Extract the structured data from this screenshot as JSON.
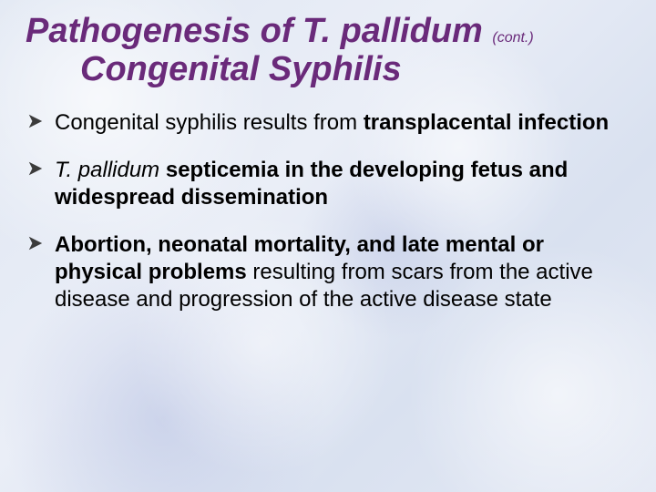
{
  "colors": {
    "title": "#6a2a7a",
    "bullet_arrow": "#3b3b3b",
    "body_text": "#000000",
    "bg_base": "#e4e9f4"
  },
  "title": {
    "organism": "Pathogenesis of T. pallidum",
    "cont": "(cont.)",
    "subtitle": "Congenital Syphilis"
  },
  "bullets": [
    {
      "pre": "Congenital syphilis results from ",
      "bold": "transplacental infection",
      "post": ""
    },
    {
      "pre_italic": "T. pallidum",
      "pre": " ",
      "bold": "septicemia in the developing fetus and widespread dissemination",
      "post": ""
    },
    {
      "pre": "",
      "bold": "Abortion, neonatal mortality, and late mental or physical problems",
      "post": " resulting from scars from the active disease and progression of the active disease state"
    }
  ]
}
